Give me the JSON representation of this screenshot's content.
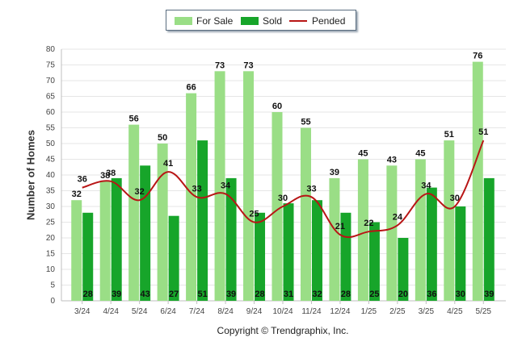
{
  "chart_data": {
    "type": "bar",
    "ylabel": "Number of Homes",
    "xlabel": "",
    "ylim": [
      0,
      80
    ],
    "yticks": [
      0,
      5,
      10,
      15,
      20,
      25,
      30,
      35,
      40,
      45,
      50,
      55,
      60,
      65,
      70,
      75,
      80
    ],
    "grid": true,
    "legend_position": "top",
    "categories": [
      "3/24",
      "4/24",
      "5/24",
      "6/24",
      "7/24",
      "8/24",
      "9/24",
      "10/24",
      "11/24",
      "12/24",
      "1/25",
      "2/25",
      "3/25",
      "4/25",
      "5/25"
    ],
    "series": [
      {
        "name": "For Sale",
        "kind": "bar",
        "color": "#9ade86",
        "values": [
          32,
          38,
          56,
          50,
          66,
          73,
          73,
          60,
          55,
          39,
          45,
          43,
          45,
          51,
          76
        ]
      },
      {
        "name": "Sold",
        "kind": "bar",
        "color": "#17a52a",
        "values": [
          28,
          39,
          43,
          27,
          51,
          39,
          28,
          31,
          32,
          28,
          25,
          20,
          36,
          30,
          39
        ]
      },
      {
        "name": "Pended",
        "kind": "line",
        "color": "#b81515",
        "values": [
          36,
          38,
          32,
          41,
          33,
          34,
          25,
          30,
          33,
          21,
          22,
          24,
          34,
          30,
          51
        ]
      }
    ]
  },
  "copyright": "Copyright © Trendgraphix, Inc."
}
